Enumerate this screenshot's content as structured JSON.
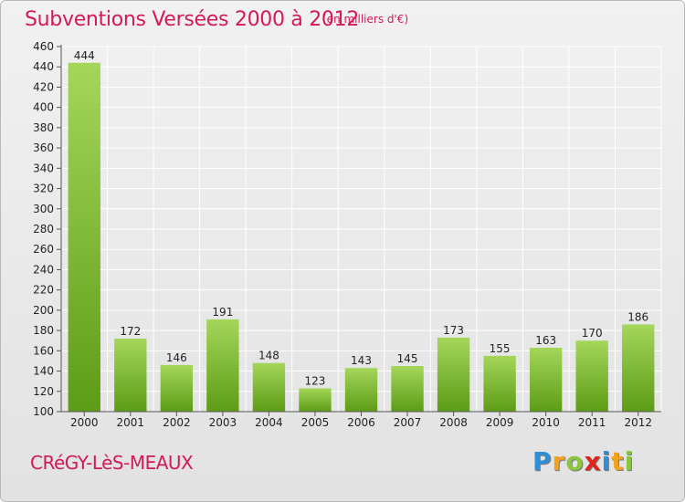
{
  "header": {
    "title": "Subventions Versées 2000 à 2012",
    "unit_note": "(en milliers d'€)"
  },
  "footer": {
    "commune": "CRéGY-LèS-MEAUX",
    "logo": {
      "letters": [
        "P",
        "r",
        "o",
        "x",
        "i",
        "t",
        "i"
      ],
      "colors": [
        "#2f8fd6",
        "#f3a11d",
        "#8cc63f",
        "#e2231a",
        "#2f8fd6",
        "#f3a11d",
        "#8cc63f"
      ]
    }
  },
  "chart_data": {
    "type": "bar",
    "title": "Subventions Versées 2000 à 2012",
    "subtitle": "(en milliers d'€)",
    "xlabel": "",
    "ylabel": "",
    "categories": [
      "2000",
      "2001",
      "2002",
      "2003",
      "2004",
      "2005",
      "2006",
      "2007",
      "2008",
      "2009",
      "2010",
      "2011",
      "2012"
    ],
    "values": [
      444,
      172,
      146,
      191,
      148,
      123,
      143,
      145,
      173,
      155,
      163,
      170,
      186
    ],
    "ylim": [
      100,
      460
    ],
    "yticks": [
      100,
      120,
      140,
      160,
      180,
      200,
      220,
      240,
      260,
      280,
      300,
      320,
      340,
      360,
      380,
      400,
      420,
      440,
      460
    ],
    "grid": true,
    "legend": "none",
    "colors": {
      "bar_light": "#a4d65a",
      "bar_dark": "#5d9c16",
      "grid": "#ffffff",
      "axis": "#555555",
      "text": "#222222",
      "accent": "#d2195a"
    }
  }
}
